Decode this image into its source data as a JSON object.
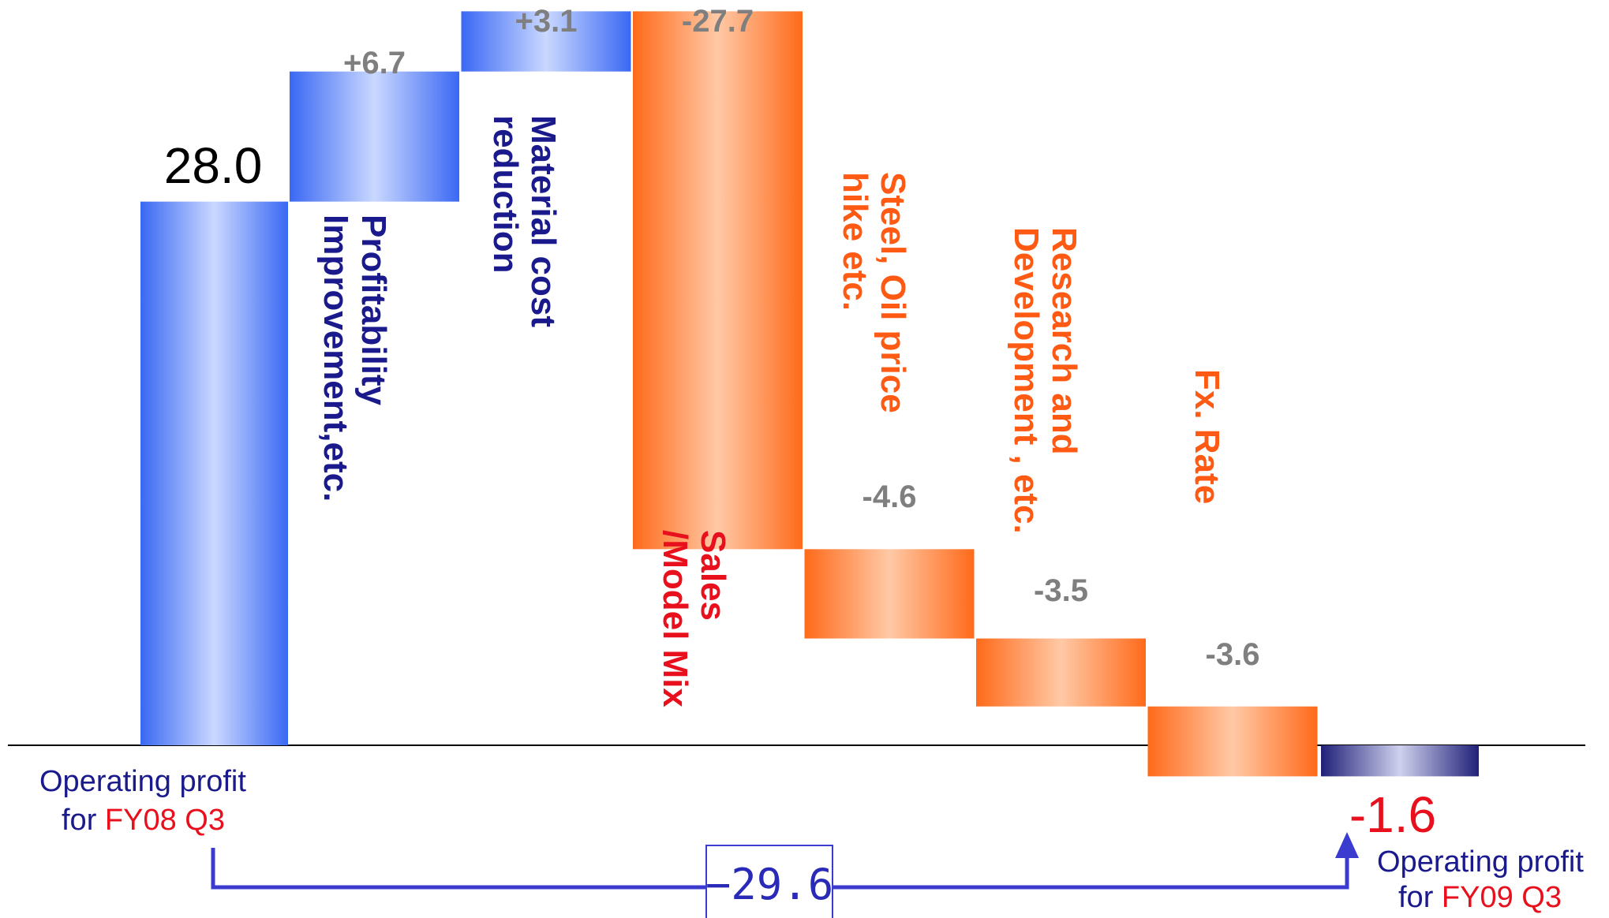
{
  "chart_data": {
    "type": "bar",
    "subtype": "waterfall",
    "title": "",
    "ylim": [
      -3,
      52
    ],
    "grid": false,
    "legend": "none",
    "start": {
      "value": 28.0,
      "value_label": "28.0",
      "label_prefix": "Operating profit",
      "label_line2_prefix": "for",
      "label_line2_highlight": "FY08 Q3"
    },
    "steps": [
      {
        "name": "Profitability Improvement,etc.",
        "lines": [
          "Profitability",
          "Improvement,etc."
        ],
        "delta": 6.7,
        "delta_label": "+6.7",
        "color": "blue"
      },
      {
        "name": "Material cost reduction",
        "lines": [
          "Material cost",
          "reduction"
        ],
        "delta": 3.1,
        "delta_label": "+3.1",
        "color": "blue"
      },
      {
        "name": "Sales /Model Mix",
        "lines": [
          "Sales",
          "/Model Mix"
        ],
        "delta": -27.7,
        "delta_label": "-27.7",
        "color": "orange"
      },
      {
        "name": "Steel, Oil price hike etc.",
        "lines": [
          "Steel, Oil price",
          "hike etc."
        ],
        "delta": -4.6,
        "delta_label": "-4.6",
        "color": "orange"
      },
      {
        "name": "Research and Development , etc.",
        "lines": [
          "Research and",
          "Development , etc."
        ],
        "delta": -3.5,
        "delta_label": "-3.5",
        "color": "orange"
      },
      {
        "name": "Fx. Rate",
        "lines": [
          "Fx. Rate"
        ],
        "delta": -3.6,
        "delta_label": "-3.6",
        "color": "orange"
      }
    ],
    "end": {
      "value": -1.6,
      "value_label": "-1.6",
      "label_prefix": "Operating profit",
      "label_line2_prefix": "for",
      "label_line2_highlight": "FY09 Q3"
    },
    "difference": {
      "value": -29.6,
      "label": "−29.6"
    }
  },
  "colors": {
    "blue": "#3f6ff5",
    "blue_light": "#c8d6ff",
    "orange": "#ff6f1f",
    "orange_light": "#ffc8a3",
    "navy": "#23237f",
    "navy_light": "#c9cbea",
    "label_blue": "#1a1a8c",
    "label_orange": "#ff5a14",
    "label_red": "#e8101c",
    "label_gray": "#7f7f7f",
    "arrow": "#3b3bd0"
  }
}
